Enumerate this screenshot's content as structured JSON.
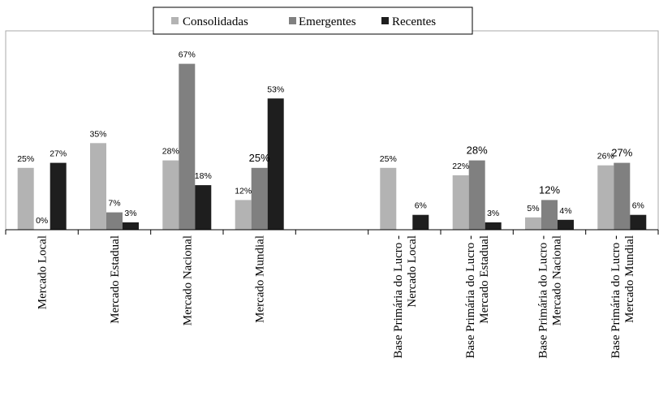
{
  "chart_data": {
    "type": "bar",
    "title": "",
    "xlabel": "",
    "ylabel": "",
    "ylim": [
      0,
      0.7
    ],
    "grid": false,
    "legend_position": "top-center",
    "categories": [
      "Mercado Local",
      "Mercado Estadual",
      "Mercado Nacional",
      "Mercado Mundial",
      "",
      "Base Primária do Lucro - Nercado Local",
      "Base Primária do Lucro - Mercado Estadual",
      "Base Primária do Lucro - Mercado Nacional",
      "Base Primária do Lucro - Mercado Mundial"
    ],
    "category_lines": [
      [
        "Mercado Local"
      ],
      [
        "Mercado Estadual"
      ],
      [
        "Mercado Nacional"
      ],
      [
        "Mercado Mundial"
      ],
      [],
      [
        "Base Primária do Lucro -",
        "Nercado Local"
      ],
      [
        "Base Primária do Lucro -",
        "Mercado Estadual"
      ],
      [
        "Base Primária do Lucro -",
        "Mercado Nacional"
      ],
      [
        "Base Primária do Lucro -",
        "Mercado Mundial"
      ]
    ],
    "series": [
      {
        "name": "Consolidadas",
        "color": "#b3b3b3",
        "values": [
          0.25,
          0.35,
          0.28,
          0.12,
          null,
          0.25,
          0.22,
          0.05,
          0.26
        ],
        "labels": [
          "25%",
          "35%",
          "28%",
          "12%",
          "",
          "25%",
          "22%",
          "5%",
          "26%"
        ]
      },
      {
        "name": "Emergentes",
        "color": "#808080",
        "values": [
          0.0,
          0.07,
          0.67,
          0.25,
          null,
          null,
          0.28,
          0.12,
          0.27
        ],
        "labels": [
          "0%",
          "7%",
          "67%",
          "25%",
          "",
          "",
          "28%",
          "12%",
          "27%"
        ]
      },
      {
        "name": "Recentes",
        "color": "#1e1e1e",
        "values": [
          0.27,
          0.03,
          0.18,
          0.53,
          null,
          0.06,
          0.03,
          0.04,
          0.06
        ],
        "labels": [
          "27%",
          "3%",
          "18%",
          "53%",
          "",
          "6%",
          "3%",
          "4%",
          "6%"
        ]
      }
    ]
  }
}
